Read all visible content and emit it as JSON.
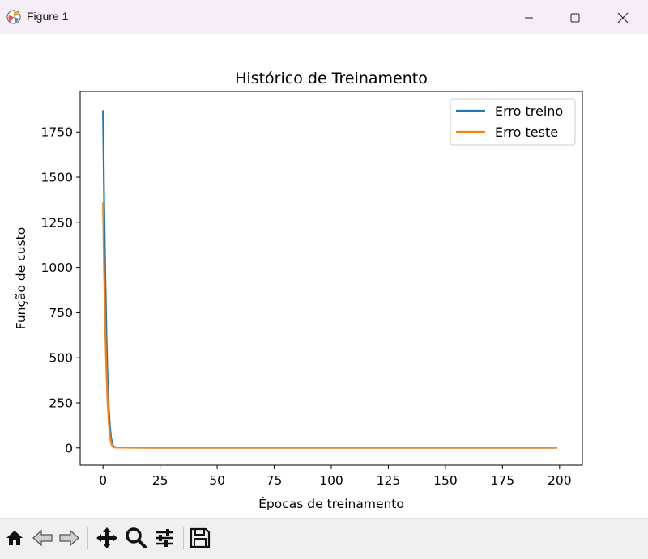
{
  "window": {
    "title": "Figure 1",
    "icon": "matplotlib-icon",
    "controls": [
      "minimize-icon",
      "maximize-icon",
      "close-icon"
    ]
  },
  "toolbar": {
    "tools": [
      "home-icon",
      "back-icon",
      "forward-icon",
      "pan-icon",
      "zoom-icon",
      "configure-subplots-icon",
      "save-icon"
    ]
  },
  "chart_data": {
    "type": "line",
    "title": "Histórico de Treinamento",
    "xlabel": "Épocas de treinamento",
    "ylabel": "Função de custo",
    "xlim": [
      -10,
      210
    ],
    "ylim": [
      -95,
      1975
    ],
    "xticks": [
      0,
      25,
      50,
      75,
      100,
      125,
      150,
      175,
      200
    ],
    "yticks": [
      0,
      250,
      500,
      750,
      1000,
      1250,
      1500,
      1750
    ],
    "grid": false,
    "legend_position": "top-right",
    "series": [
      {
        "name": "Erro treino",
        "color": "#1f77b4",
        "x": [
          0,
          0.5,
          1,
          1.5,
          2,
          2.5,
          3,
          3.5,
          4,
          4.5,
          5,
          6,
          8,
          10,
          20,
          50,
          100,
          150,
          199
        ],
        "values": [
          1870,
          1350,
          950,
          620,
          380,
          220,
          120,
          60,
          25,
          10,
          5,
          3,
          2,
          2,
          1,
          1,
          1,
          1,
          1
        ]
      },
      {
        "name": "Erro teste",
        "color": "#ff7f0e",
        "x": [
          0,
          0.5,
          1,
          1.5,
          2,
          2.5,
          3,
          3.5,
          4,
          4.5,
          5,
          6,
          8,
          10,
          20,
          50,
          100,
          150,
          199
        ],
        "values": [
          1360,
          960,
          650,
          420,
          250,
          140,
          70,
          30,
          12,
          6,
          3,
          2,
          2,
          2,
          1,
          1,
          1,
          1,
          1
        ]
      }
    ]
  }
}
